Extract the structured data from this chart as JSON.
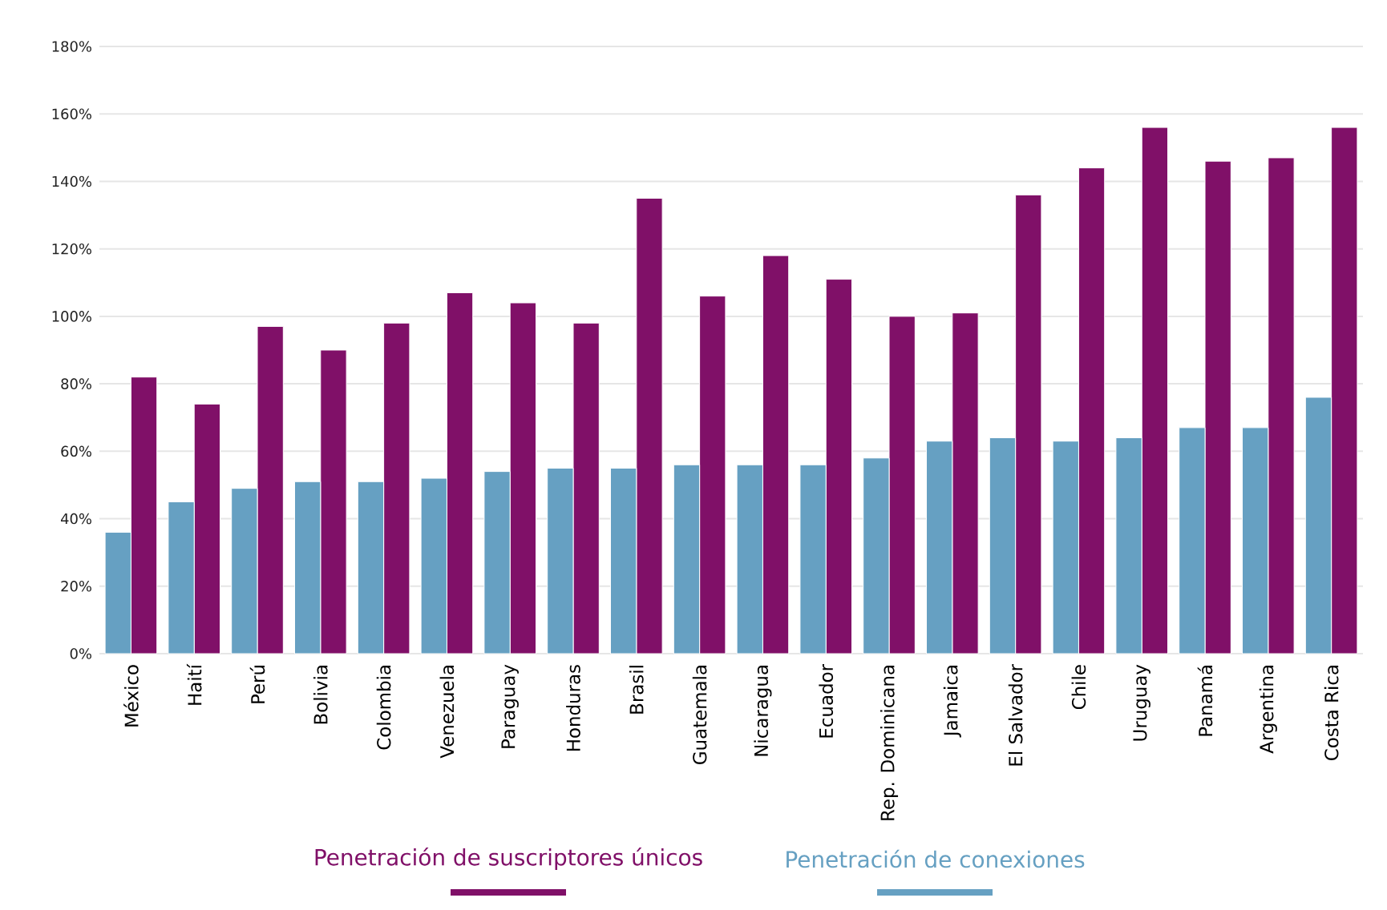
{
  "chart_data": {
    "type": "bar",
    "categories": [
      "México",
      "Haití",
      "Perú",
      "Bolivia",
      "Colombia",
      "Venezuela",
      "Paraguay",
      "Honduras",
      "Brasil",
      "Guatemala",
      "Nicaragua",
      "Ecuador",
      "Rep. Dominicana",
      "Jamaica",
      "El Salvador",
      "Chile",
      "Uruguay",
      "Panamá",
      "Argentina",
      "Costa Rica"
    ],
    "series": [
      {
        "name": "Penetración de suscriptores únicos",
        "color": "#801068",
        "values": [
          82,
          74,
          97,
          90,
          98,
          107,
          104,
          98,
          135,
          106,
          118,
          111,
          100,
          101,
          136,
          144,
          156,
          146,
          147,
          156
        ]
      },
      {
        "name": "Penetración de conexiones",
        "color": "#66a0c2",
        "values": [
          36,
          45,
          49,
          51,
          51,
          52,
          54,
          55,
          55,
          56,
          56,
          56,
          58,
          63,
          64,
          63,
          64,
          67,
          67,
          76
        ]
      }
    ],
    "ylim": [
      0,
      180
    ],
    "yticks": [
      {
        "value": 0,
        "label": "0%"
      },
      {
        "value": 20,
        "label": "20%"
      },
      {
        "value": 40,
        "label": "40%"
      },
      {
        "value": 60,
        "label": "60%"
      },
      {
        "value": 80,
        "label": "80%"
      },
      {
        "value": 100,
        "label": "100%"
      },
      {
        "value": 120,
        "label": "120%"
      },
      {
        "value": 140,
        "label": "140%"
      },
      {
        "value": 160,
        "label": "160%"
      },
      {
        "value": 180,
        "label": "180%"
      }
    ],
    "grid": "y",
    "legend": "bottom"
  }
}
